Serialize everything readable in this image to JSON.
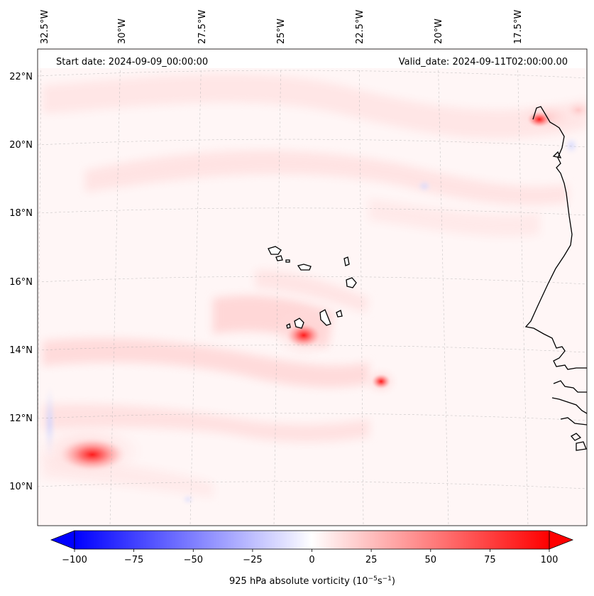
{
  "map": {
    "header_left": "Start date: 2024-09-09_00:00:00",
    "header_right": "Valid_date: 2024-09-11T02:00:00.00",
    "longitude_labels": [
      "32.5°W",
      "30°W",
      "27.5°W",
      "25°W",
      "22.5°W",
      "20°W",
      "17.5°W"
    ],
    "latitude_labels": [
      "22°N",
      "20°N",
      "18°N",
      "16°N",
      "14°N",
      "12°N",
      "10°N"
    ],
    "features": [
      "Cape Verde islands",
      "West African coastline",
      "vorticity maximum near 14.4°N 24°W",
      "vorticity maximum near 13°N 21.6°W",
      "vorticity maximum near 11°N 31°W"
    ]
  },
  "colorbar": {
    "ticks": [
      "−100",
      "−75",
      "−50",
      "−25",
      "0",
      "25",
      "50",
      "75",
      "100"
    ],
    "min": -100,
    "max": 100,
    "label": "925 hPa absolute vorticity (10",
    "label_exp1": "−5",
    "label_mid": "s",
    "label_exp2": "−1",
    "label_end": ")",
    "negative_color": "#0000ff",
    "positive_color": "#ff0000"
  }
}
